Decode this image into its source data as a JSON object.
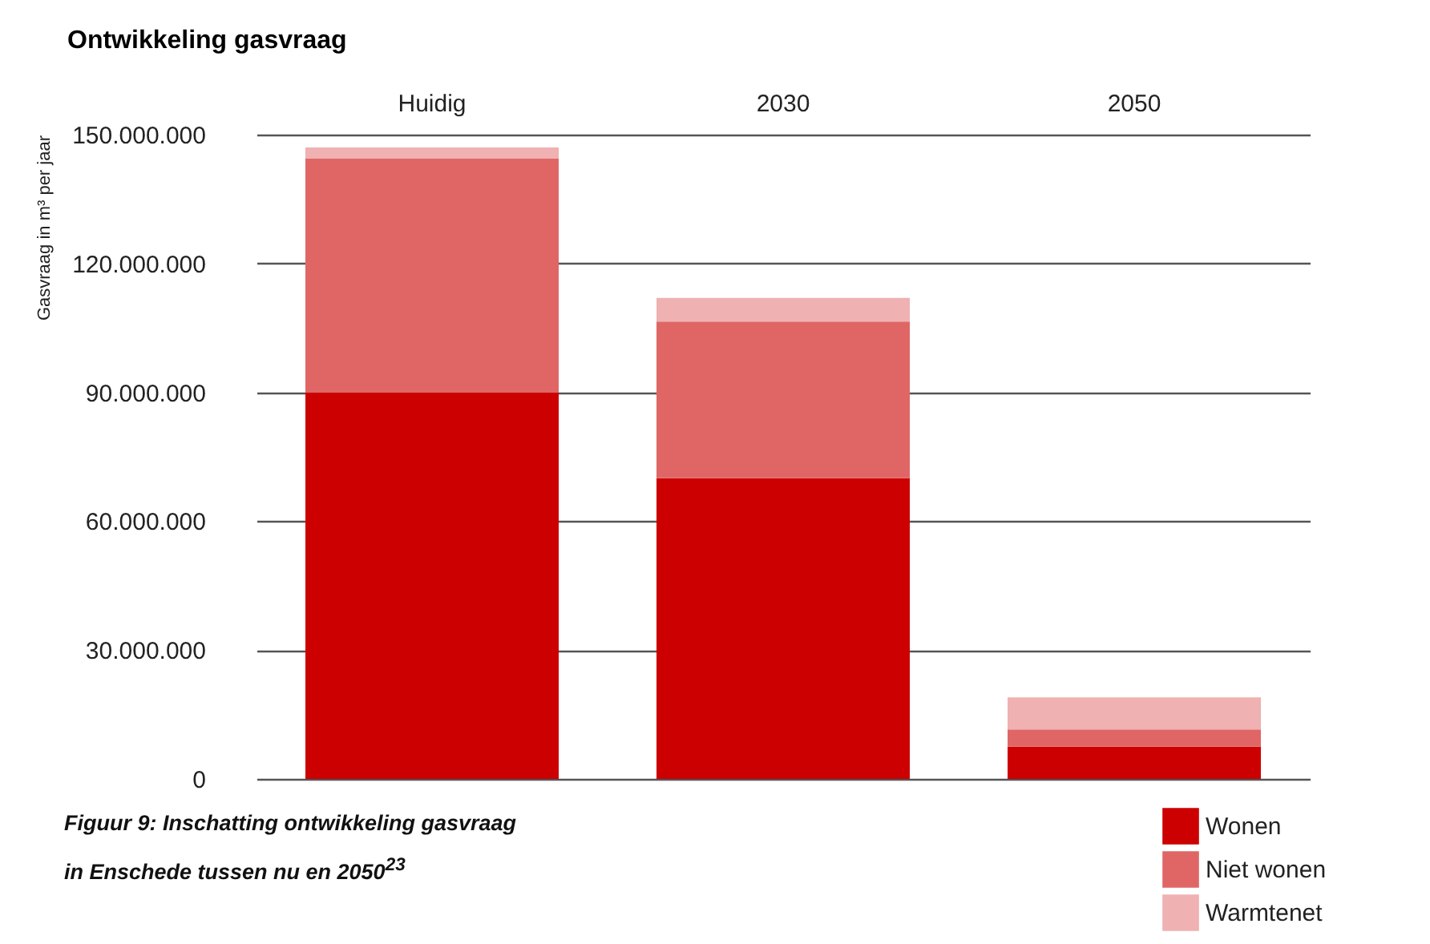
{
  "chart_data": {
    "type": "bar",
    "title": "Ontwikkeling gasvraag",
    "ylabel": "Gasvraag in m³ per jaar",
    "categories": [
      "Huidig",
      "2030",
      "2050"
    ],
    "stacked": true,
    "series": [
      {
        "name": "Wonen",
        "color": "#cc0000",
        "values": [
          90000000,
          70000000,
          7500000
        ]
      },
      {
        "name": "Niet wonen",
        "color": "#e06666",
        "values": [
          54500000,
          36500000,
          4000000
        ]
      },
      {
        "name": "Warmtenet",
        "color": "#efb1b1",
        "values": [
          2500000,
          5500000,
          7500000
        ]
      }
    ],
    "ylim": [
      0,
      150000000
    ],
    "yticks": [
      {
        "value": 0,
        "label": "0"
      },
      {
        "value": 30000000,
        "label": "30.000.000"
      },
      {
        "value": 60000000,
        "label": "60.000.000"
      },
      {
        "value": 90000000,
        "label": "90.000.000"
      },
      {
        "value": 120000000,
        "label": "120.000.000"
      },
      {
        "value": 150000000,
        "label": "150.000.000"
      }
    ],
    "grid": "y",
    "legend": "bottom right",
    "annotations": [
      "Figuur 9: Inschatting ontwikkeling gasvraag",
      "in Enschede tussen nu en 2050$^{23}$"
    ]
  }
}
